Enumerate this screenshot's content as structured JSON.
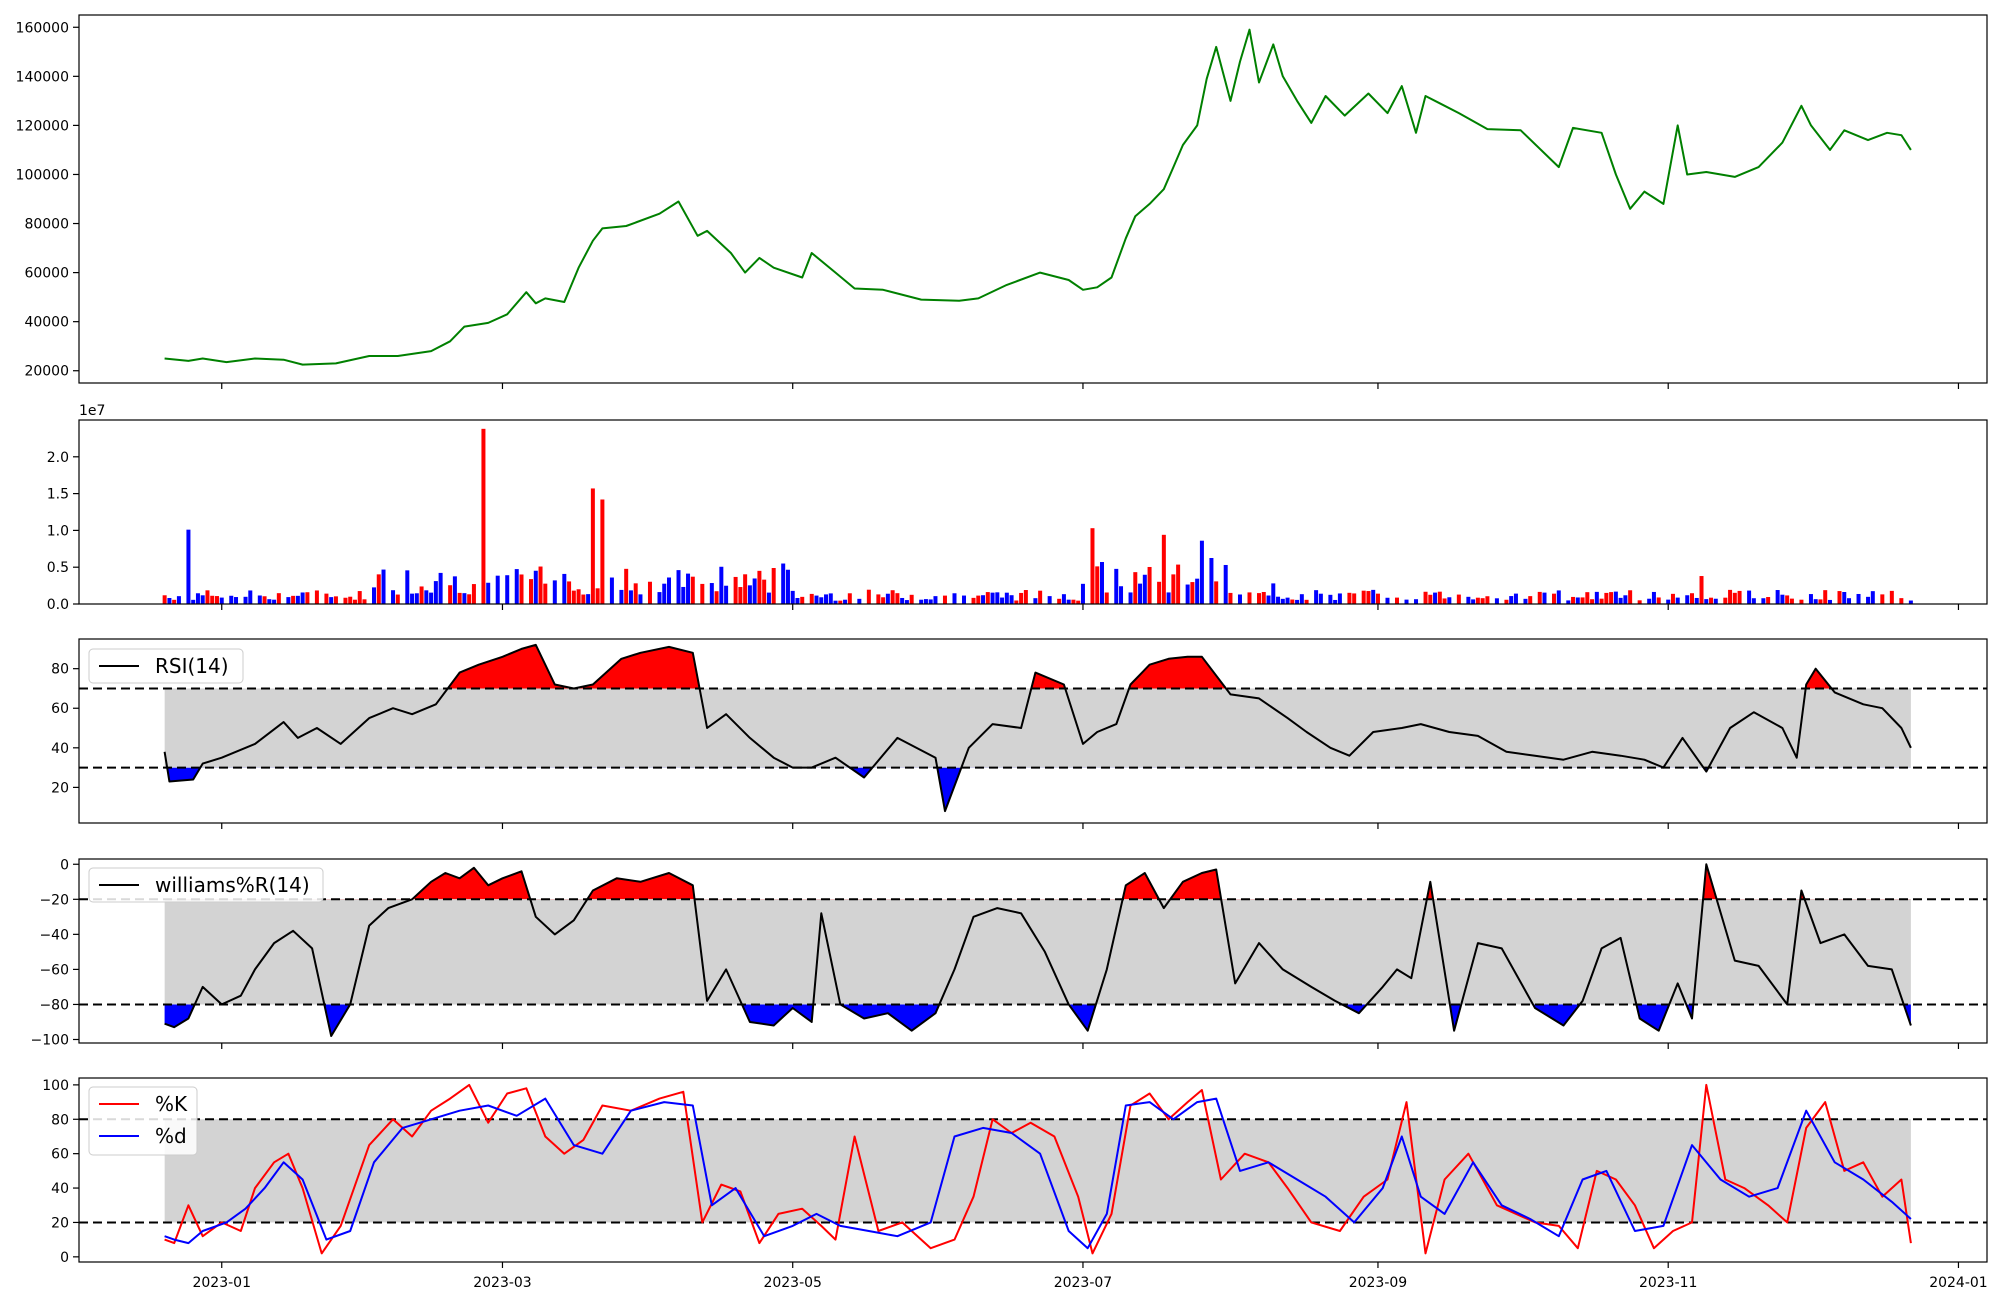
{
  "chart_data": [
    {
      "panel": "price",
      "type": "line",
      "color": "#008000",
      "ylim": [
        15000,
        165000
      ],
      "yticks": [
        20000,
        40000,
        60000,
        80000,
        100000,
        120000,
        140000,
        160000
      ],
      "xlim": [
        "2022-12-02",
        "2024-01-07"
      ],
      "x": [
        "2022-12-20",
        "2022-12-25",
        "2022-12-28",
        "2023-01-02",
        "2023-01-08",
        "2023-01-14",
        "2023-01-18",
        "2023-01-25",
        "2023-02-01",
        "2023-02-07",
        "2023-02-14",
        "2023-02-18",
        "2023-02-21",
        "2023-02-26",
        "2023-03-02",
        "2023-03-06",
        "2023-03-08",
        "2023-03-10",
        "2023-03-14",
        "2023-03-17",
        "2023-03-20",
        "2023-03-22",
        "2023-03-27",
        "2023-04-03",
        "2023-04-07",
        "2023-04-11",
        "2023-04-13",
        "2023-04-18",
        "2023-04-21",
        "2023-04-24",
        "2023-04-27",
        "2023-05-03",
        "2023-05-05",
        "2023-05-10",
        "2023-05-14",
        "2023-05-20",
        "2023-05-28",
        "2023-06-05",
        "2023-06-09",
        "2023-06-15",
        "2023-06-22",
        "2023-06-28",
        "2023-07-01",
        "2023-07-04",
        "2023-07-07",
        "2023-07-10",
        "2023-07-12",
        "2023-07-15",
        "2023-07-18",
        "2023-07-20",
        "2023-07-22",
        "2023-07-25",
        "2023-07-27",
        "2023-07-29",
        "2023-08-01",
        "2023-08-03",
        "2023-08-05",
        "2023-08-07",
        "2023-08-10",
        "2023-08-12",
        "2023-08-15",
        "2023-08-18",
        "2023-08-21",
        "2023-08-25",
        "2023-08-30",
        "2023-09-03",
        "2023-09-06",
        "2023-09-09",
        "2023-09-11",
        "2023-09-14",
        "2023-09-18",
        "2023-09-24",
        "2023-10-01",
        "2023-10-09",
        "2023-10-12",
        "2023-10-18",
        "2023-10-21",
        "2023-10-24",
        "2023-10-27",
        "2023-10-31",
        "2023-11-03",
        "2023-11-05",
        "2023-11-09",
        "2023-11-15",
        "2023-11-20",
        "2023-11-25",
        "2023-11-29",
        "2023-12-01",
        "2023-12-05",
        "2023-12-08",
        "2023-12-13",
        "2023-12-17",
        "2023-12-20",
        "2023-12-22"
      ],
      "values": [
        25000,
        24000,
        25000,
        23500,
        25000,
        24500,
        22500,
        23000,
        26000,
        26000,
        28000,
        32000,
        38000,
        39500,
        43000,
        52000,
        47500,
        49500,
        48000,
        62000,
        73000,
        78000,
        79000,
        84000,
        89000,
        75000,
        77000,
        68000,
        60000,
        66000,
        62000,
        58000,
        68000,
        60000,
        53500,
        53000,
        49000,
        48500,
        49500,
        55000,
        60000,
        57000,
        53000,
        54000,
        58000,
        74000,
        83000,
        88000,
        94000,
        103000,
        112000,
        120000,
        139000,
        152000,
        130000,
        146000,
        159000,
        137500,
        153000,
        140000,
        130000,
        121000,
        132000,
        124000,
        133000,
        125000,
        136000,
        117000,
        132000,
        129000,
        125000,
        118500,
        118000,
        103000,
        119000,
        117000,
        100000,
        86000,
        93000,
        88000,
        120000,
        100000,
        101000,
        99000,
        103000,
        113000,
        128000,
        120000,
        110000,
        118000,
        114000,
        117000,
        116000,
        110000
      ]
    },
    {
      "panel": "volume",
      "type": "bar",
      "offset_label": "1e7",
      "ylim": [
        0,
        25000000
      ],
      "yticks": [
        0,
        5000000,
        10000000,
        15000000,
        20000000
      ],
      "ytick_labels": [
        "0.0",
        "0.5",
        "1.0",
        "1.5",
        "2.0"
      ],
      "colors": {
        "up": "#ff0000",
        "down": "#0000ff"
      },
      "start_date": "2022-12-20",
      "end_date": "2023-12-22",
      "series": [
        {
          "name": "up",
          "x": [
            "2023-02-25",
            "2023-03-01",
            "2023-03-06",
            "2023-03-20",
            "2023-03-22",
            "2023-06-23",
            "2023-07-03",
            "2023-07-18",
            "2023-11-08"
          ],
          "values": [
            23800000,
            15200000,
            12800000,
            15700000,
            14200000,
            7300000,
            10300000,
            9400000,
            3800000
          ]
        },
        {
          "name": "down",
          "x": [
            "2022-12-25",
            "2023-04-05",
            "2023-04-29",
            "2023-07-26",
            "2023-08-10"
          ],
          "values": [
            10100000,
            3600000,
            5500000,
            8600000,
            2800000
          ]
        }
      ]
    },
    {
      "panel": "rsi",
      "type": "line",
      "legend": [
        "RSI(14)"
      ],
      "color": "#000000",
      "ylim": [
        2,
        95
      ],
      "yticks": [
        20,
        40,
        60,
        80
      ],
      "levels": [
        30,
        70
      ],
      "fill_colors": {
        "overbought": "#ff0000",
        "oversold": "#0000ff",
        "band": "#d3d3d3"
      },
      "x": [
        "2022-12-20",
        "2022-12-21",
        "2022-12-26",
        "2022-12-28",
        "2023-01-01",
        "2023-01-08",
        "2023-01-14",
        "2023-01-17",
        "2023-01-21",
        "2023-01-26",
        "2023-02-01",
        "2023-02-06",
        "2023-02-10",
        "2023-02-15",
        "2023-02-20",
        "2023-02-24",
        "2023-03-01",
        "2023-03-05",
        "2023-03-08",
        "2023-03-12",
        "2023-03-16",
        "2023-03-20",
        "2023-03-26",
        "2023-03-30",
        "2023-04-05",
        "2023-04-10",
        "2023-04-13",
        "2023-04-17",
        "2023-04-22",
        "2023-04-27",
        "2023-05-01",
        "2023-05-05",
        "2023-05-10",
        "2023-05-16",
        "2023-05-23",
        "2023-05-31",
        "2023-06-02",
        "2023-06-07",
        "2023-06-12",
        "2023-06-18",
        "2023-06-21",
        "2023-06-27",
        "2023-07-01",
        "2023-07-04",
        "2023-07-08",
        "2023-07-11",
        "2023-07-15",
        "2023-07-19",
        "2023-07-23",
        "2023-07-26",
        "2023-08-01",
        "2023-08-07",
        "2023-08-13",
        "2023-08-17",
        "2023-08-22",
        "2023-08-26",
        "2023-08-31",
        "2023-09-06",
        "2023-09-10",
        "2023-09-16",
        "2023-09-22",
        "2023-09-28",
        "2023-10-04",
        "2023-10-10",
        "2023-10-16",
        "2023-10-22",
        "2023-10-27",
        "2023-10-31",
        "2023-11-04",
        "2023-11-09",
        "2023-11-14",
        "2023-11-19",
        "2023-11-25",
        "2023-11-28",
        "2023-11-30",
        "2023-12-02",
        "2023-12-06",
        "2023-12-12",
        "2023-12-16",
        "2023-12-20",
        "2023-12-22"
      ],
      "values": [
        38,
        23,
        24,
        32,
        35,
        42,
        53,
        45,
        50,
        42,
        55,
        60,
        57,
        62,
        78,
        82,
        86,
        90,
        92,
        72,
        70,
        72,
        85,
        88,
        91,
        88,
        50,
        57,
        45,
        35,
        30,
        30,
        35,
        25,
        45,
        35,
        8,
        40,
        52,
        50,
        78,
        72,
        42,
        48,
        52,
        72,
        82,
        85,
        86,
        86,
        67,
        65,
        55,
        48,
        40,
        36,
        48,
        50,
        52,
        48,
        46,
        38,
        36,
        34,
        38,
        36,
        34,
        30,
        45,
        28,
        50,
        58,
        50,
        35,
        72,
        80,
        68,
        62,
        60,
        50,
        40
      ]
    },
    {
      "panel": "williams",
      "type": "line",
      "legend": [
        "williams%R(14)"
      ],
      "color": "#000000",
      "ylim": [
        -102,
        3
      ],
      "yticks": [
        -100,
        -80,
        -60,
        -40,
        -20,
        0
      ],
      "yticks_text": [
        "−100",
        "−80",
        "−60",
        "−40",
        "−20",
        "0"
      ],
      "levels": [
        -20,
        -80
      ],
      "fill_colors": {
        "overbought": "#ff0000",
        "oversold": "#0000ff",
        "band": "#d3d3d3"
      },
      "x": [
        "2022-12-20",
        "2022-12-22",
        "2022-12-25",
        "2022-12-28",
        "2023-01-01",
        "2023-01-05",
        "2023-01-08",
        "2023-01-12",
        "2023-01-16",
        "2023-01-20",
        "2023-01-24",
        "2023-01-28",
        "2023-02-01",
        "2023-02-05",
        "2023-02-10",
        "2023-02-14",
        "2023-02-17",
        "2023-02-20",
        "2023-02-23",
        "2023-02-26",
        "2023-03-01",
        "2023-03-05",
        "2023-03-08",
        "2023-03-12",
        "2023-03-16",
        "2023-03-20",
        "2023-03-25",
        "2023-03-30",
        "2023-04-05",
        "2023-04-10",
        "2023-04-13",
        "2023-04-17",
        "2023-04-22",
        "2023-04-27",
        "2023-05-01",
        "2023-05-05",
        "2023-05-07",
        "2023-05-11",
        "2023-05-16",
        "2023-05-21",
        "2023-05-26",
        "2023-05-31",
        "2023-06-04",
        "2023-06-08",
        "2023-06-13",
        "2023-06-18",
        "2023-06-23",
        "2023-06-28",
        "2023-07-02",
        "2023-07-06",
        "2023-07-10",
        "2023-07-14",
        "2023-07-18",
        "2023-07-22",
        "2023-07-26",
        "2023-07-29",
        "2023-08-02",
        "2023-08-07",
        "2023-08-12",
        "2023-08-18",
        "2023-08-23",
        "2023-08-28",
        "2023-09-02",
        "2023-09-05",
        "2023-09-08",
        "2023-09-12",
        "2023-09-17",
        "2023-09-22",
        "2023-09-27",
        "2023-10-04",
        "2023-10-10",
        "2023-10-14",
        "2023-10-18",
        "2023-10-22",
        "2023-10-26",
        "2023-10-30",
        "2023-11-03",
        "2023-11-06",
        "2023-11-09",
        "2023-11-15",
        "2023-11-20",
        "2023-11-26",
        "2023-11-29",
        "2023-12-03",
        "2023-12-08",
        "2023-12-13",
        "2023-12-18",
        "2023-12-22"
      ],
      "values": [
        -91,
        -93,
        -88,
        -70,
        -80,
        -75,
        -60,
        -45,
        -38,
        -48,
        -98,
        -80,
        -35,
        -25,
        -20,
        -10,
        -5,
        -8,
        -2,
        -12,
        -8,
        -4,
        -30,
        -40,
        -32,
        -15,
        -8,
        -10,
        -5,
        -12,
        -78,
        -60,
        -90,
        -92,
        -82,
        -90,
        -28,
        -80,
        -88,
        -85,
        -95,
        -85,
        -60,
        -30,
        -25,
        -28,
        -50,
        -80,
        -95,
        -60,
        -12,
        -5,
        -25,
        -10,
        -5,
        -3,
        -68,
        -45,
        -60,
        -70,
        -78,
        -85,
        -70,
        -60,
        -65,
        -10,
        -95,
        -45,
        -48,
        -82,
        -92,
        -78,
        -48,
        -42,
        -88,
        -95,
        -68,
        -88,
        0,
        -55,
        -58,
        -80,
        -15,
        -45,
        -40,
        -58,
        -60,
        -92
      ]
    },
    {
      "panel": "stochastic",
      "type": "line",
      "ylim": [
        -3,
        104
      ],
      "yticks": [
        0,
        20,
        40,
        60,
        80,
        100
      ],
      "levels": [
        20,
        80
      ],
      "band_color": "#d3d3d3",
      "series": [
        {
          "name": "%K",
          "color": "#ff0000",
          "x": [
            "2022-12-20",
            "2022-12-22",
            "2022-12-25",
            "2022-12-28",
            "2023-01-01",
            "2023-01-05",
            "2023-01-08",
            "2023-01-12",
            "2023-01-15",
            "2023-01-18",
            "2023-01-22",
            "2023-01-26",
            "2023-02-01",
            "2023-02-06",
            "2023-02-10",
            "2023-02-14",
            "2023-02-18",
            "2023-02-22",
            "2023-02-26",
            "2023-03-02",
            "2023-03-06",
            "2023-03-10",
            "2023-03-14",
            "2023-03-18",
            "2023-03-22",
            "2023-03-28",
            "2023-04-03",
            "2023-04-08",
            "2023-04-12",
            "2023-04-16",
            "2023-04-20",
            "2023-04-24",
            "2023-04-28",
            "2023-05-03",
            "2023-05-07",
            "2023-05-10",
            "2023-05-14",
            "2023-05-19",
            "2023-05-24",
            "2023-05-30",
            "2023-06-04",
            "2023-06-08",
            "2023-06-12",
            "2023-06-16",
            "2023-06-20",
            "2023-06-25",
            "2023-06-30",
            "2023-07-03",
            "2023-07-07",
            "2023-07-11",
            "2023-07-15",
            "2023-07-19",
            "2023-07-23",
            "2023-07-26",
            "2023-07-30",
            "2023-08-04",
            "2023-08-09",
            "2023-08-13",
            "2023-08-18",
            "2023-08-24",
            "2023-08-29",
            "2023-09-03",
            "2023-09-07",
            "2023-09-11",
            "2023-09-15",
            "2023-09-20",
            "2023-09-26",
            "2023-10-04",
            "2023-10-09",
            "2023-10-13",
            "2023-10-17",
            "2023-10-21",
            "2023-10-25",
            "2023-10-29",
            "2023-11-02",
            "2023-11-06",
            "2023-11-09",
            "2023-11-13",
            "2023-11-17",
            "2023-11-22",
            "2023-11-26",
            "2023-11-30",
            "2023-12-04",
            "2023-12-08",
            "2023-12-12",
            "2023-12-16",
            "2023-12-20",
            "2023-12-22"
          ],
          "values": [
            10,
            8,
            30,
            12,
            20,
            15,
            40,
            55,
            60,
            40,
            2,
            18,
            65,
            80,
            70,
            85,
            92,
            100,
            78,
            95,
            98,
            70,
            60,
            68,
            88,
            85,
            92,
            96,
            20,
            42,
            38,
            8,
            25,
            28,
            18,
            10,
            70,
            15,
            20,
            5,
            10,
            35,
            80,
            72,
            78,
            70,
            35,
            2,
            25,
            88,
            95,
            80,
            90,
            97,
            45,
            60,
            55,
            40,
            20,
            15,
            35,
            45,
            90,
            2,
            45,
            60,
            30,
            20,
            18,
            5,
            50,
            45,
            30,
            5,
            15,
            20,
            100,
            45,
            40,
            30,
            20,
            75,
            90,
            50,
            55,
            35,
            45,
            8
          ]
        },
        {
          "name": "%d",
          "color": "#0000ff",
          "x": [
            "2022-12-20",
            "2022-12-22",
            "2022-12-25",
            "2022-12-28",
            "2023-01-02",
            "2023-01-06",
            "2023-01-10",
            "2023-01-14",
            "2023-01-18",
            "2023-01-23",
            "2023-01-28",
            "2023-02-02",
            "2023-02-08",
            "2023-02-14",
            "2023-02-20",
            "2023-02-26",
            "2023-03-04",
            "2023-03-10",
            "2023-03-16",
            "2023-03-22",
            "2023-03-28",
            "2023-04-04",
            "2023-04-10",
            "2023-04-14",
            "2023-04-19",
            "2023-04-25",
            "2023-05-01",
            "2023-05-06",
            "2023-05-11",
            "2023-05-17",
            "2023-05-23",
            "2023-05-30",
            "2023-06-04",
            "2023-06-10",
            "2023-06-16",
            "2023-06-22",
            "2023-06-28",
            "2023-07-02",
            "2023-07-06",
            "2023-07-10",
            "2023-07-15",
            "2023-07-20",
            "2023-07-25",
            "2023-07-29",
            "2023-08-03",
            "2023-08-09",
            "2023-08-15",
            "2023-08-21",
            "2023-08-27",
            "2023-09-02",
            "2023-09-06",
            "2023-09-10",
            "2023-09-15",
            "2023-09-21",
            "2023-09-27",
            "2023-10-03",
            "2023-10-09",
            "2023-10-14",
            "2023-10-19",
            "2023-10-25",
            "2023-10-31",
            "2023-11-06",
            "2023-11-12",
            "2023-11-18",
            "2023-11-24",
            "2023-11-30",
            "2023-12-06",
            "2023-12-12",
            "2023-12-18",
            "2023-12-22"
          ],
          "values": [
            12,
            10,
            8,
            15,
            20,
            28,
            40,
            55,
            45,
            10,
            15,
            55,
            75,
            80,
            85,
            88,
            82,
            92,
            65,
            60,
            85,
            90,
            88,
            30,
            40,
            12,
            18,
            25,
            18,
            15,
            12,
            20,
            70,
            75,
            72,
            60,
            15,
            5,
            25,
            88,
            90,
            80,
            90,
            92,
            50,
            55,
            45,
            35,
            20,
            40,
            70,
            35,
            25,
            55,
            30,
            22,
            12,
            45,
            50,
            15,
            18,
            65,
            45,
            35,
            40,
            85,
            55,
            45,
            32,
            22
          ]
        }
      ]
    }
  ],
  "x_axis": {
    "labels": [
      "2023-01",
      "2023-03",
      "2023-05",
      "2023-07",
      "2023-09",
      "2023-11",
      "2024-01"
    ],
    "dates": [
      "2023-01-01",
      "2023-03-01",
      "2023-05-01",
      "2023-07-01",
      "2023-09-01",
      "2023-11-01",
      "2024-01-01"
    ]
  }
}
